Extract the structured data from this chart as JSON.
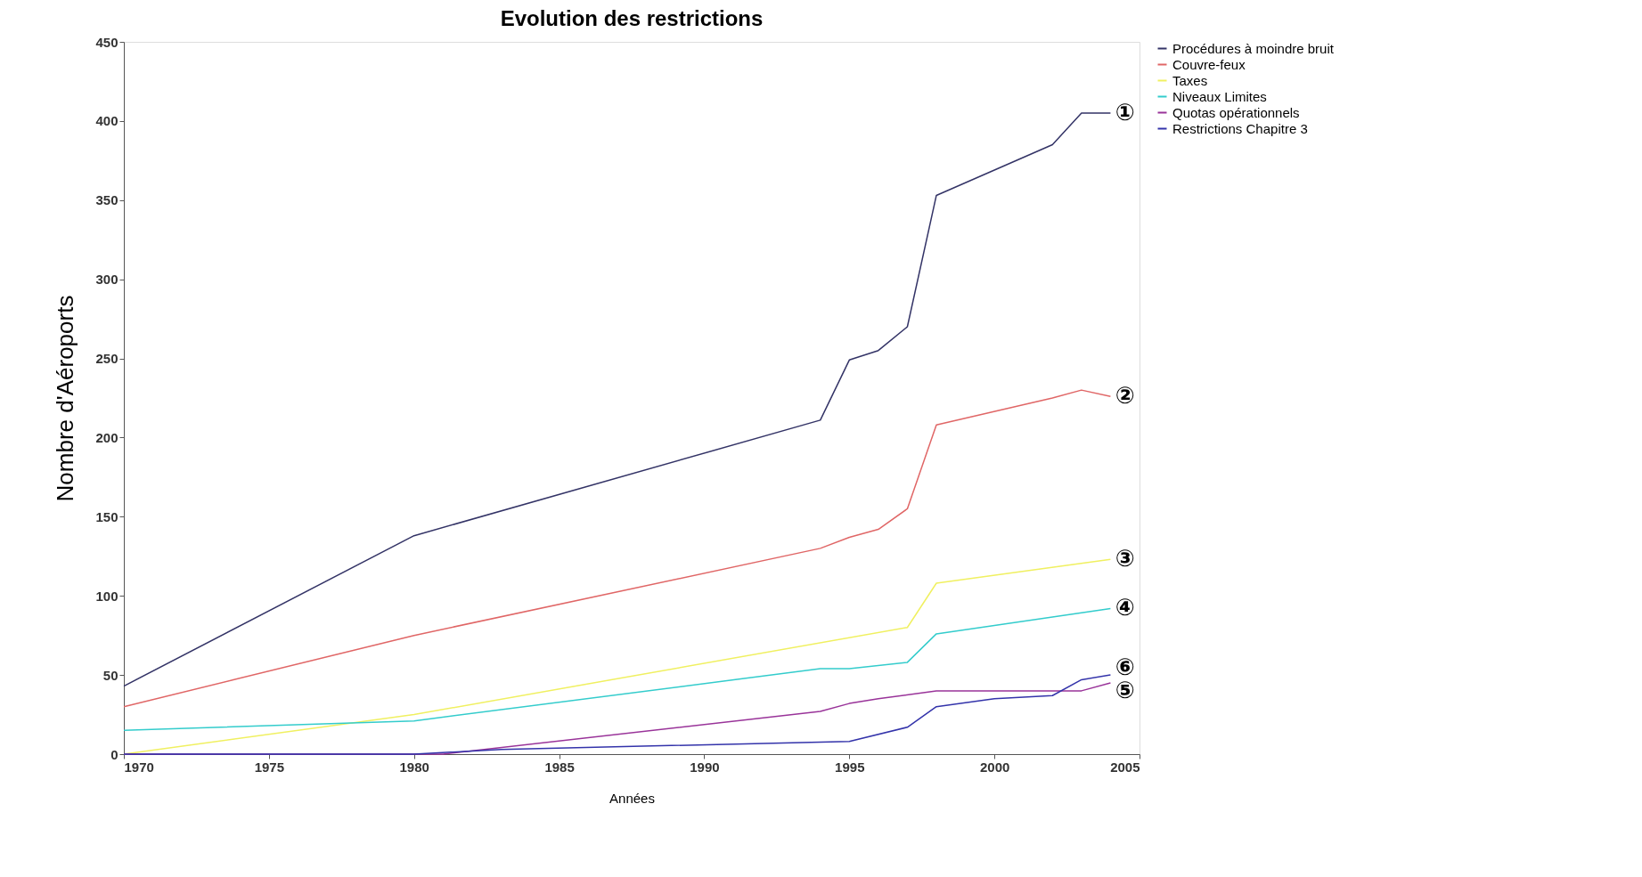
{
  "chart_data": {
    "type": "line",
    "title": "Evolution des restrictions",
    "xlabel": "Années",
    "ylabel": "Nombre d'Aéroports",
    "xlim": [
      1970,
      2005
    ],
    "xticks": [
      1970,
      1975,
      1980,
      1985,
      1990,
      1995,
      2000,
      2005
    ],
    "ylim": [
      0,
      450
    ],
    "yticks": [
      0,
      50,
      100,
      150,
      200,
      250,
      300,
      350,
      400,
      450
    ],
    "grid": false,
    "legend": "right",
    "marker": "none",
    "line_style": "solid",
    "series": [
      {
        "name": "Procédures à moindre bruit",
        "color": "#333366",
        "x": [
          1970,
          1980,
          1994,
          1995,
          1996,
          1997,
          1998,
          2002,
          2003,
          2004
        ],
        "values": [
          43,
          138,
          211,
          249,
          255,
          270,
          353,
          385,
          405,
          405
        ]
      },
      {
        "name": "Couvre-feux",
        "color": "#e06666",
        "x": [
          1970,
          1980,
          1994,
          1995,
          1996,
          1997,
          1998,
          2002,
          2003,
          2004
        ],
        "values": [
          30,
          75,
          130,
          137,
          142,
          155,
          208,
          225,
          230,
          226
        ]
      },
      {
        "name": "Taxes",
        "color": "#f0f060",
        "x": [
          1970,
          1980,
          1997,
          1998,
          2004
        ],
        "values": [
          0,
          25,
          80,
          108,
          123
        ]
      },
      {
        "name": "Niveaux Limites",
        "color": "#33cccc",
        "x": [
          1970,
          1980,
          1994,
          1995,
          1997,
          1998,
          2004
        ],
        "values": [
          15,
          21,
          54,
          54,
          58,
          76,
          92
        ]
      },
      {
        "name": "Quotas opérationnels",
        "color": "#993399",
        "x": [
          1970,
          1981,
          1994,
          1995,
          1996,
          1998,
          2003,
          2004
        ],
        "values": [
          0,
          0,
          27,
          32,
          35,
          40,
          40,
          45
        ]
      },
      {
        "name": "Restrictions Chapitre 3",
        "color": "#3333aa",
        "x": [
          1970,
          1980,
          1983,
          1995,
          1997,
          1998,
          2000,
          2002,
          2003,
          2004
        ],
        "values": [
          0,
          0,
          3,
          8,
          17,
          30,
          35,
          37,
          47,
          50
        ]
      }
    ],
    "annotations": [
      "①",
      "②",
      "③",
      "④",
      "⑤",
      "⑥"
    ]
  }
}
